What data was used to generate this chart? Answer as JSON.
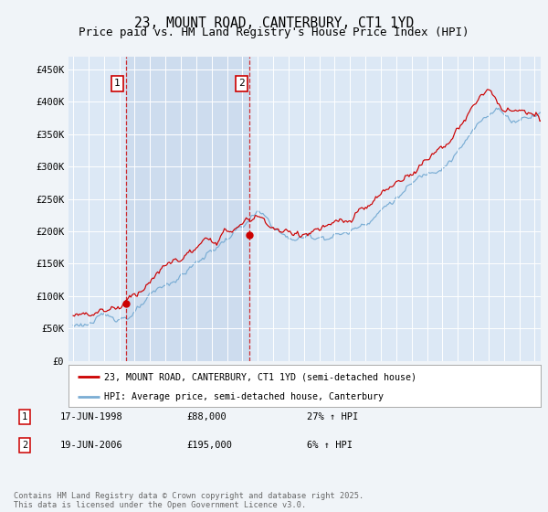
{
  "title": "23, MOUNT ROAD, CANTERBURY, CT1 1YD",
  "subtitle": "Price paid vs. HM Land Registry's House Price Index (HPI)",
  "bg_color": "#f0f4f8",
  "plot_bg_color": "#dce8f5",
  "shade_color": "#c8d8ec",
  "ylim": [
    0,
    470000
  ],
  "yticks": [
    0,
    50000,
    100000,
    150000,
    200000,
    250000,
    300000,
    350000,
    400000,
    450000
  ],
  "ytick_labels": [
    "£0",
    "£50K",
    "£100K",
    "£150K",
    "£200K",
    "£250K",
    "£300K",
    "£350K",
    "£400K",
    "£450K"
  ],
  "purchase1_year": 1998.46,
  "purchase1_price": 88000,
  "purchase1_label": "1",
  "purchase2_year": 2006.46,
  "purchase2_price": 195000,
  "purchase2_label": "2",
  "red_color": "#cc0000",
  "blue_color": "#7aadd4",
  "legend_entries": [
    "23, MOUNT ROAD, CANTERBURY, CT1 1YD (semi-detached house)",
    "HPI: Average price, semi-detached house, Canterbury"
  ],
  "legend_colors": [
    "#cc0000",
    "#7aadd4"
  ],
  "table_rows": [
    {
      "label": "1",
      "date": "17-JUN-1998",
      "price": "£88,000",
      "hpi": "27% ↑ HPI"
    },
    {
      "label": "2",
      "date": "19-JUN-2006",
      "price": "£195,000",
      "hpi": "6% ↑ HPI"
    }
  ],
  "footer": "Contains HM Land Registry data © Crown copyright and database right 2025.\nThis data is licensed under the Open Government Licence v3.0.",
  "title_fontsize": 10.5,
  "subtitle_fontsize": 9
}
